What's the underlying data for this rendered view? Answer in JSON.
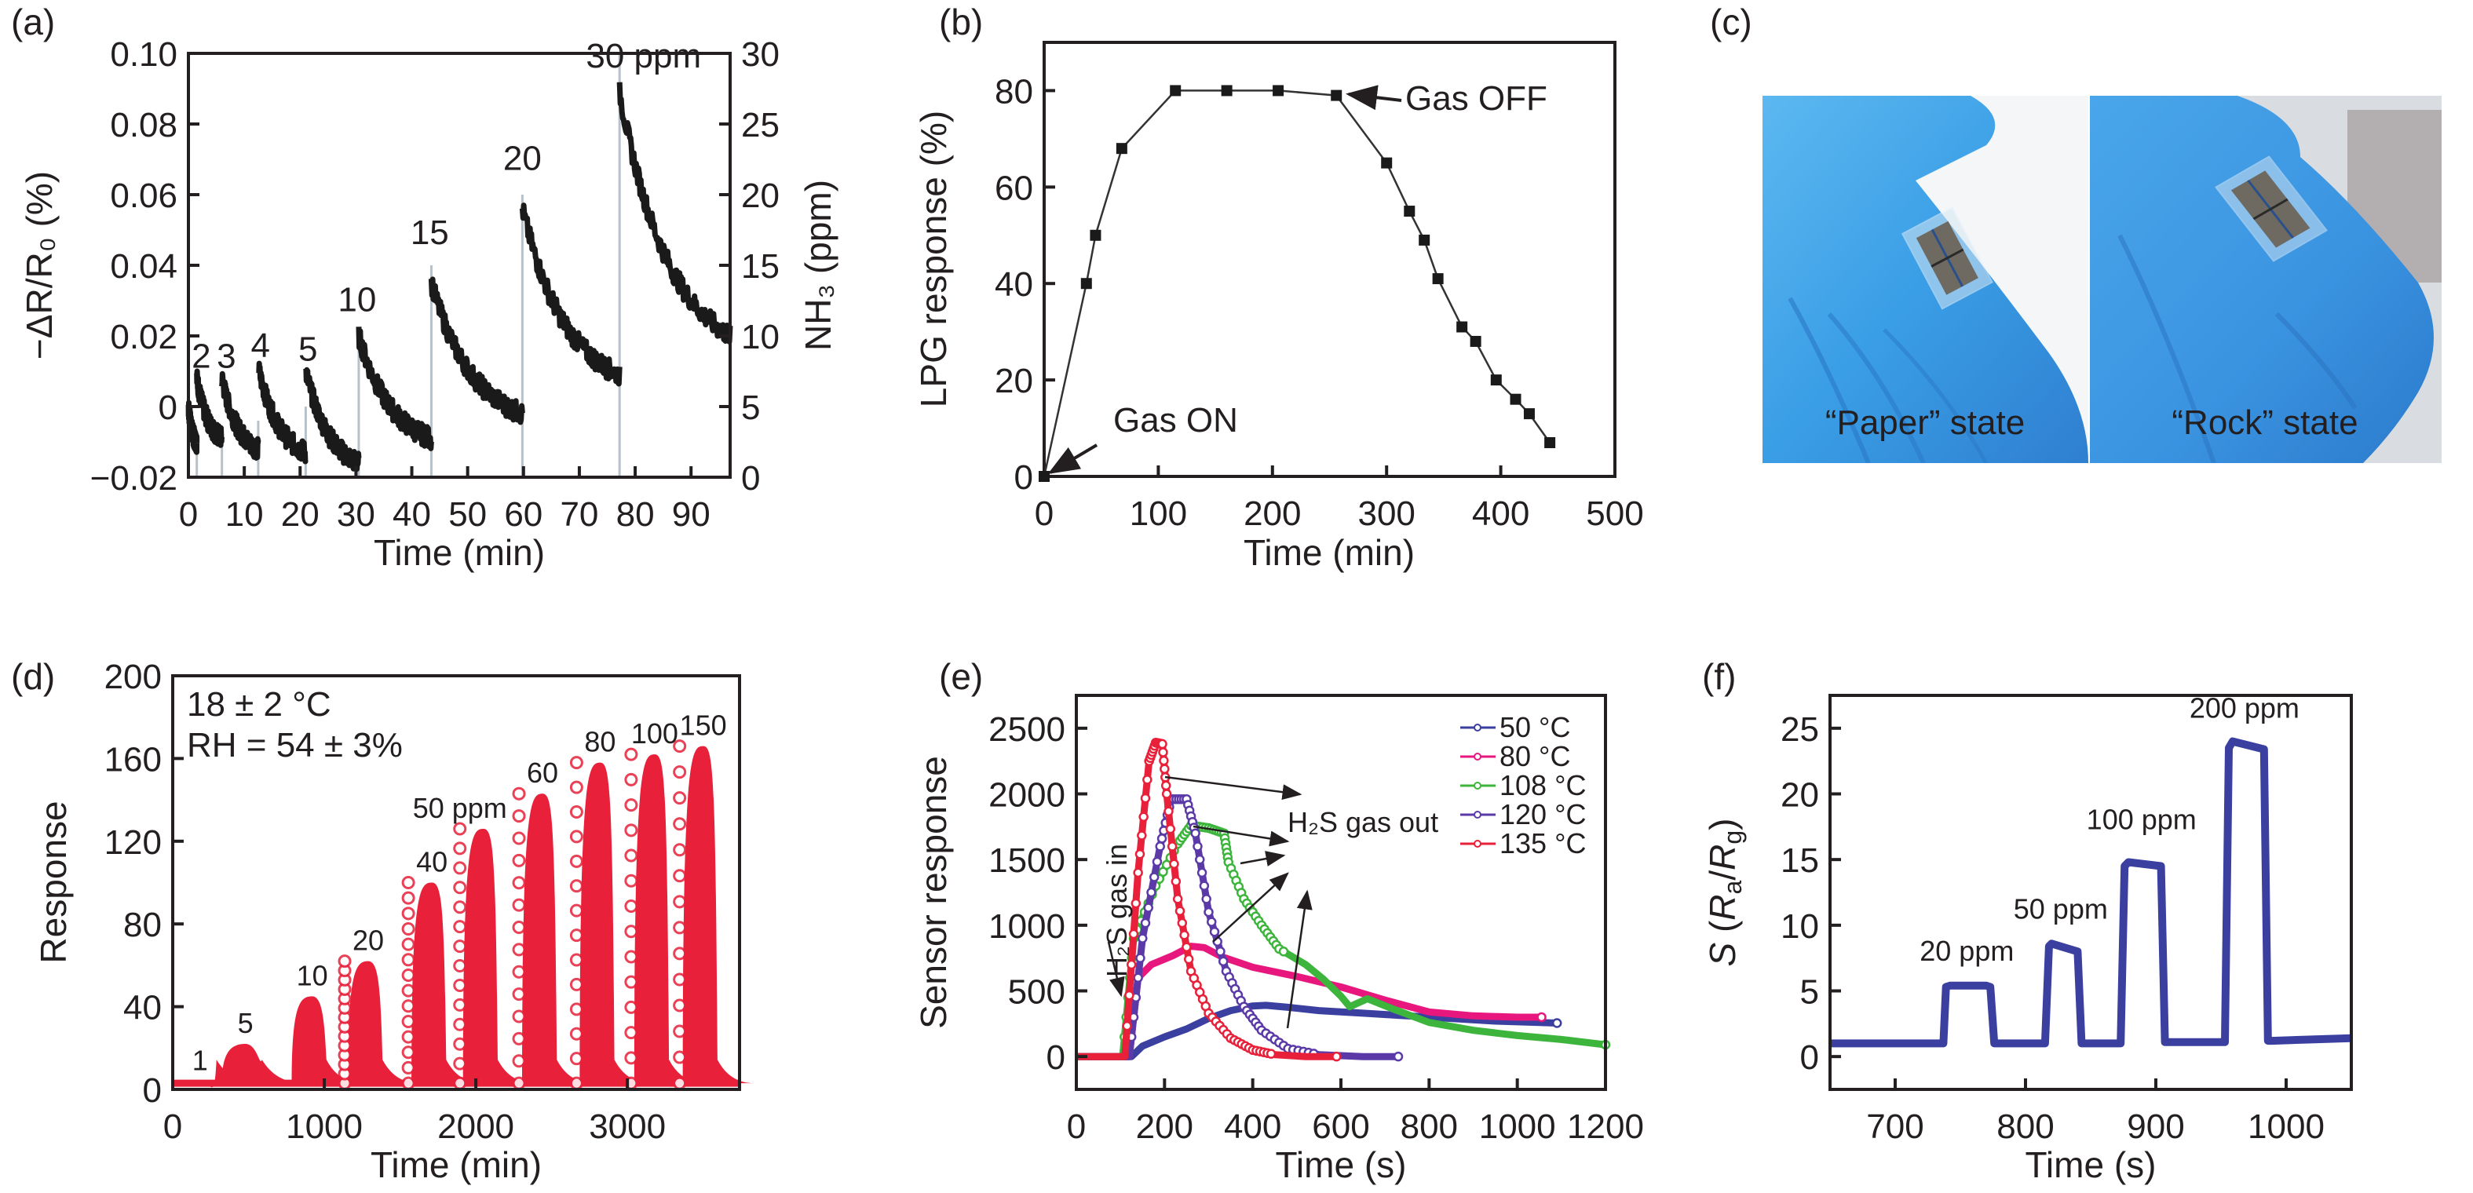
{
  "figure": {
    "panels": [
      "(a)",
      "(b)",
      "(c)",
      "(d)",
      "(e)",
      "(f)"
    ]
  },
  "photo": {
    "label": "(c)",
    "left_caption": "“Paper” state",
    "right_caption": "“Rock” state",
    "glove_color": "#3d9be0",
    "device_color": "#6e6a62"
  },
  "chart_data": [
    {
      "id": "a",
      "type": "line",
      "panel_label": "(a)",
      "title": "",
      "xlabel": "Time (min)",
      "ylabel": "−ΔR/R₀ (%)",
      "y2label": "NH₃ (ppm)",
      "xlim": [
        0,
        97
      ],
      "ylim": [
        -0.02,
        0.1
      ],
      "y2lim": [
        0,
        30
      ],
      "xticks": [
        0,
        10,
        20,
        30,
        40,
        50,
        60,
        70,
        80,
        90
      ],
      "yticks": [
        -0.02,
        0,
        0.02,
        0.04,
        0.06,
        0.08,
        0.1
      ],
      "ytick_labels": [
        "−0.02",
        "0",
        "0.02",
        "0.04",
        "0.06",
        "0.08",
        "0.10"
      ],
      "y2ticks": [
        0,
        5,
        10,
        15,
        20,
        25,
        30
      ],
      "grid": false,
      "color": "#1a1a1a",
      "pulse_color": "#b8c0c8",
      "segments": [
        {
          "start": 0,
          "end": 1.5,
          "peak": 0.0,
          "end_value": -0.01
        },
        {
          "start": 1.5,
          "end": 6,
          "peak": 0.008,
          "end_value": -0.009,
          "conc_ppm": 2
        },
        {
          "start": 6,
          "end": 12.5,
          "peak": 0.008,
          "end_value": -0.012,
          "conc_ppm": 3
        },
        {
          "start": 12.5,
          "end": 21,
          "peak": 0.011,
          "end_value": -0.013,
          "conc_ppm": 4
        },
        {
          "start": 21,
          "end": 30.5,
          "peak": 0.01,
          "end_value": -0.016,
          "conc_ppm": 5
        },
        {
          "start": 30.5,
          "end": 43.5,
          "peak": 0.02,
          "end_value": -0.009,
          "conc_ppm": 10
        },
        {
          "start": 43.5,
          "end": 59.8,
          "peak": 0.035,
          "end_value": -0.002,
          "conc_ppm": 15
        },
        {
          "start": 59.8,
          "end": 77.2,
          "peak": 0.056,
          "end_value": 0.009,
          "conc_ppm": 20
        },
        {
          "start": 77.2,
          "end": 97,
          "peak": 0.089,
          "end_value": 0.02,
          "conc_ppm": 30
        }
      ],
      "annotations": [
        {
          "text": "2",
          "x": 2.3,
          "y": 0.011
        },
        {
          "text": "3",
          "x": 6.8,
          "y": 0.011
        },
        {
          "text": "4",
          "x": 12.9,
          "y": 0.014
        },
        {
          "text": "5",
          "x": 21.4,
          "y": 0.013
        },
        {
          "text": "10",
          "x": 30.2,
          "y": 0.027
        },
        {
          "text": "15",
          "x": 43.2,
          "y": 0.046
        },
        {
          "text": "20",
          "x": 59.8,
          "y": 0.067
        },
        {
          "text": "30 ppm",
          "x": 81.5,
          "y": 0.096
        }
      ]
    },
    {
      "id": "b",
      "type": "line",
      "panel_label": "(b)",
      "title": "",
      "xlabel": "Time (min)",
      "ylabel": "LPG response (%)",
      "xlim": [
        0,
        500
      ],
      "ylim": [
        0,
        90
      ],
      "xticks": [
        0,
        100,
        200,
        300,
        400,
        500
      ],
      "yticks": [
        0,
        20,
        40,
        60,
        80
      ],
      "grid": false,
      "color": "#1a1a1a",
      "marker": "square",
      "x": [
        0,
        37,
        45,
        68,
        115,
        160,
        205,
        256,
        300,
        320,
        333,
        345,
        366,
        378,
        396,
        413,
        425,
        443
      ],
      "y": [
        0,
        40,
        50,
        68,
        80,
        80,
        80,
        79,
        65,
        55,
        49,
        41,
        31,
        28,
        20,
        16,
        13,
        7
      ],
      "annotations": [
        {
          "text": "Gas ON",
          "x": 20,
          "y": 8,
          "arrow_to": [
            3,
            1
          ]
        },
        {
          "text": "Gas OFF",
          "x": 320,
          "y": 79,
          "arrow_to": [
            260,
            79
          ]
        }
      ]
    },
    {
      "id": "d",
      "type": "scatter",
      "panel_label": "(d)",
      "title": "",
      "xlabel": "Time (min)",
      "ylabel": "Response",
      "xlim": [
        0,
        3740
      ],
      "ylim": [
        0,
        200
      ],
      "xticks": [
        0,
        1000,
        2000,
        3000
      ],
      "yticks": [
        0,
        40,
        80,
        120,
        160,
        200
      ],
      "grid": false,
      "color": "#e8203a",
      "marker": "open-circle",
      "baseline": 3,
      "peaks": [
        {
          "conc_label": "1",
          "x": 180,
          "y": 4
        },
        {
          "conc_label": "5",
          "x": 480,
          "y": 22
        },
        {
          "conc_label": "10",
          "x": 920,
          "y": 45
        },
        {
          "conc_label": "20",
          "x": 1290,
          "y": 62
        },
        {
          "conc_label": "40",
          "x": 1710,
          "y": 100
        },
        {
          "conc_label": "50 ppm",
          "x": 2050,
          "y": 126
        },
        {
          "conc_label": "60",
          "x": 2440,
          "y": 143
        },
        {
          "conc_label": "80",
          "x": 2820,
          "y": 158
        },
        {
          "conc_label": "100",
          "x": 3180,
          "y": 162
        },
        {
          "conc_label": "150",
          "x": 3500,
          "y": 166
        }
      ],
      "annotations": [
        {
          "text": "18 ± 2 °C"
        },
        {
          "text": "RH = 54 ± 3%"
        }
      ]
    },
    {
      "id": "e",
      "type": "line",
      "panel_label": "(e)",
      "title": "",
      "xlabel": "Time (s)",
      "ylabel": "Sensor response",
      "xlim": [
        0,
        1200
      ],
      "ylim": [
        -250,
        2750
      ],
      "xticks": [
        0,
        200,
        400,
        600,
        800,
        1000,
        1200
      ],
      "yticks": [
        0,
        500,
        1000,
        1500,
        2000,
        2500
      ],
      "grid": false,
      "legend": "top-right",
      "marker": "open-circle",
      "series": [
        {
          "name": "50 °C",
          "color": "#3a3fa0",
          "x": [
            0,
            125,
            150,
            200,
            250,
            300,
            350,
            400,
            430,
            480,
            550,
            650,
            750,
            850,
            950,
            1050,
            1090
          ],
          "y": [
            0,
            0,
            80,
            150,
            210,
            290,
            350,
            385,
            390,
            375,
            350,
            330,
            310,
            290,
            270,
            260,
            255
          ]
        },
        {
          "name": "80 °C",
          "color": "#e8177e",
          "x": [
            0,
            120,
            140,
            170,
            220,
            260,
            290,
            330,
            400,
            500,
            600,
            700,
            800,
            900,
            1000,
            1055
          ],
          "y": [
            0,
            0,
            600,
            700,
            770,
            840,
            830,
            760,
            680,
            610,
            530,
            430,
            340,
            310,
            300,
            300
          ]
        },
        {
          "name": "108 °C",
          "color": "#3db53d",
          "x": [
            0,
            105,
            130,
            180,
            230,
            260,
            300,
            335,
            345,
            380,
            420,
            460,
            520,
            560,
            600,
            620,
            660,
            720,
            800,
            900,
            1000,
            1100,
            1200
          ],
          "y": [
            0,
            0,
            900,
            1300,
            1620,
            1760,
            1740,
            1700,
            1480,
            1200,
            1000,
            820,
            700,
            590,
            460,
            380,
            440,
            360,
            260,
            200,
            160,
            130,
            90
          ]
        },
        {
          "name": "120 °C",
          "color": "#5b3aa8",
          "x": [
            0,
            120,
            150,
            190,
            215,
            250,
            270,
            300,
            340,
            380,
            420,
            480,
            550,
            650,
            730
          ],
          "y": [
            0,
            0,
            900,
            1600,
            1960,
            1960,
            1700,
            1100,
            650,
            380,
            200,
            60,
            15,
            0,
            0
          ]
        },
        {
          "name": "135 °C",
          "color": "#e8203a",
          "x": [
            0,
            110,
            140,
            165,
            180,
            195,
            205,
            230,
            260,
            300,
            350,
            400,
            450,
            520,
            590
          ],
          "y": [
            0,
            0,
            1400,
            2250,
            2390,
            2380,
            2000,
            1200,
            650,
            330,
            140,
            50,
            15,
            0,
            0
          ]
        }
      ],
      "annotations": [
        {
          "text": "H₂S gas in",
          "rotation": -90
        },
        {
          "text": "H₂S gas out"
        }
      ]
    },
    {
      "id": "f",
      "type": "line",
      "panel_label": "(f)",
      "title": "",
      "xlabel": "Time (s)",
      "ylabel": "S (Ra/Rg)",
      "xlim": [
        650,
        1050
      ],
      "ylim": [
        -2.5,
        27.5
      ],
      "xticks": [
        700,
        800,
        900,
        1000
      ],
      "yticks": [
        0,
        5,
        10,
        15,
        20,
        25
      ],
      "grid": false,
      "color": "#3a3fa0",
      "x": [
        650,
        737,
        739,
        742,
        770,
        773,
        776,
        815,
        818,
        820,
        840,
        843,
        846,
        873,
        876,
        879,
        904,
        907,
        910,
        953,
        956,
        959,
        983,
        986,
        989,
        1050
      ],
      "y": [
        1,
        1,
        5.3,
        5.4,
        5.4,
        5.3,
        1,
        1,
        8.4,
        8.6,
        8.0,
        1,
        1,
        1,
        14.5,
        14.8,
        14.5,
        1.1,
        1.1,
        1.1,
        23.5,
        24.0,
        23.4,
        1.2,
        1.2,
        1.4
      ],
      "annotations": [
        {
          "text": "20 ppm",
          "x": 755,
          "y": 7.3
        },
        {
          "text": "50 ppm",
          "x": 827,
          "y": 10.5
        },
        {
          "text": "100 ppm",
          "x": 889,
          "y": 17.3
        },
        {
          "text": "200 ppm",
          "x": 968,
          "y": 25.8
        }
      ]
    }
  ]
}
